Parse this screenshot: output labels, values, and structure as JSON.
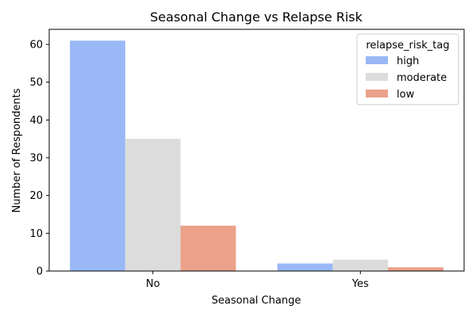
{
  "chart_data": {
    "type": "bar",
    "title": "Seasonal Change vs Relapse Risk",
    "xlabel": "Seasonal Change",
    "ylabel": "Number of Respondents",
    "categories": [
      "No",
      "Yes"
    ],
    "series": [
      {
        "name": "high",
        "values": [
          61,
          2
        ],
        "color": "#9ab8f6"
      },
      {
        "name": "moderate",
        "values": [
          35,
          3
        ],
        "color": "#dcdcdc"
      },
      {
        "name": "low",
        "values": [
          12,
          1
        ],
        "color": "#eba18a"
      }
    ],
    "ylim": [
      0,
      64
    ],
    "yticks": [
      0,
      10,
      20,
      30,
      40,
      50,
      60
    ],
    "grid": false,
    "legend": {
      "title": "relapse_risk_tag",
      "placement": "top-right"
    }
  }
}
